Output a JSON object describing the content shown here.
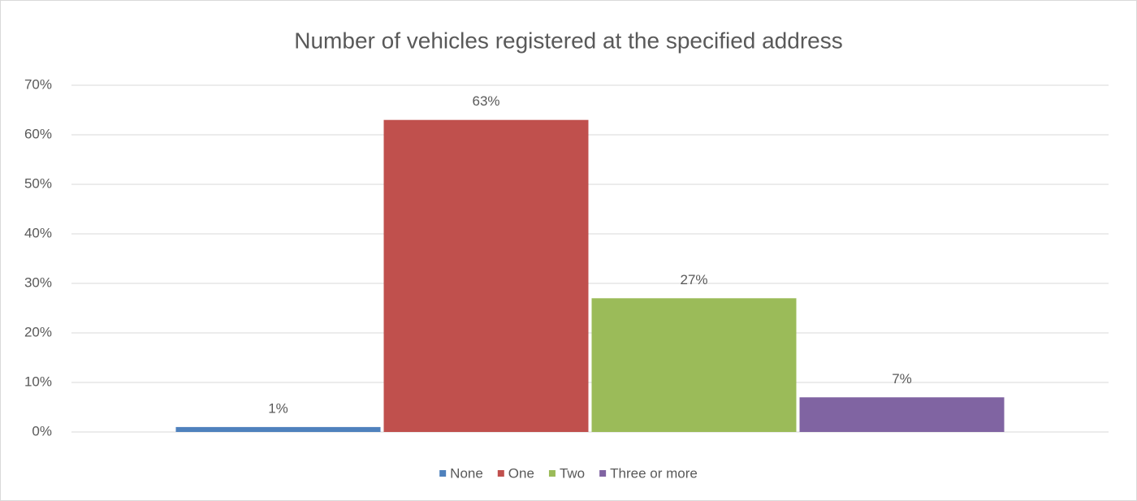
{
  "chart_data": {
    "type": "bar",
    "title": "Number of vehicles registered at the specified address",
    "categories": [
      null
    ],
    "series": [
      {
        "name": "None",
        "color": "#4f81bd",
        "values": [
          1
        ],
        "value_labels": [
          "1%"
        ]
      },
      {
        "name": "One",
        "color": "#c0504d",
        "values": [
          63
        ],
        "value_labels": [
          "63%"
        ]
      },
      {
        "name": "Two",
        "color": "#9bbb59",
        "values": [
          27
        ],
        "value_labels": [
          "27%"
        ]
      },
      {
        "name": "Three or more",
        "color": "#8064a2",
        "values": [
          7
        ],
        "value_labels": [
          "7%"
        ]
      }
    ],
    "ylim": [
      0,
      70
    ],
    "yticks": [
      {
        "value": 0,
        "label": "0%"
      },
      {
        "value": 10,
        "label": "10%"
      },
      {
        "value": 20,
        "label": "20%"
      },
      {
        "value": 30,
        "label": "30%"
      },
      {
        "value": 40,
        "label": "40%"
      },
      {
        "value": 50,
        "label": "50%"
      },
      {
        "value": 60,
        "label": "60%"
      },
      {
        "value": 70,
        "label": "70%"
      }
    ],
    "grid": true,
    "legend": "bottom"
  }
}
